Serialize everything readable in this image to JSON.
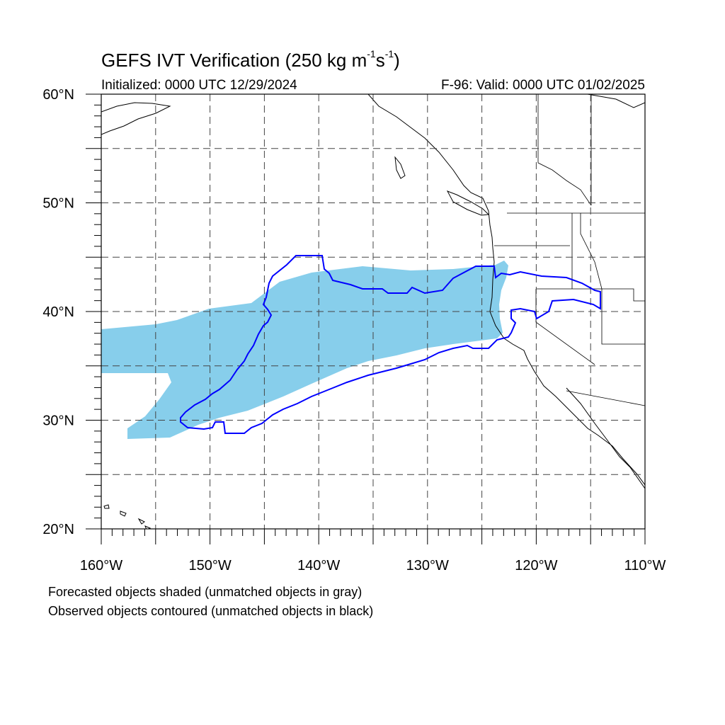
{
  "title": {
    "main": "GEFS IVT Verification (250 kg m",
    "exp1": "-1",
    "mid": "s",
    "exp2": "-1",
    "close": ")"
  },
  "initialized": "Initialized: 0000 UTC 12/29/2024",
  "valid": "F-96: Valid: 0000 UTC 01/02/2025",
  "map": {
    "lon_range": [
      -160,
      -110
    ],
    "lat_range": [
      20,
      60
    ],
    "lat_labels": [
      "20°N",
      "30°N",
      "40°N",
      "50°N",
      "60°N"
    ],
    "lon_labels": [
      "160°W",
      "150°W",
      "140°W",
      "130°W",
      "120°W",
      "110°W"
    ],
    "grid": "dashed every 5°",
    "forecast_color": "#87ceeb",
    "observed_color": "#0000ff"
  },
  "notes": {
    "line1": "Forecasted objects shaded (unmatched objects in gray)",
    "line2": "Observed objects contoured (unmatched objects in black)"
  }
}
